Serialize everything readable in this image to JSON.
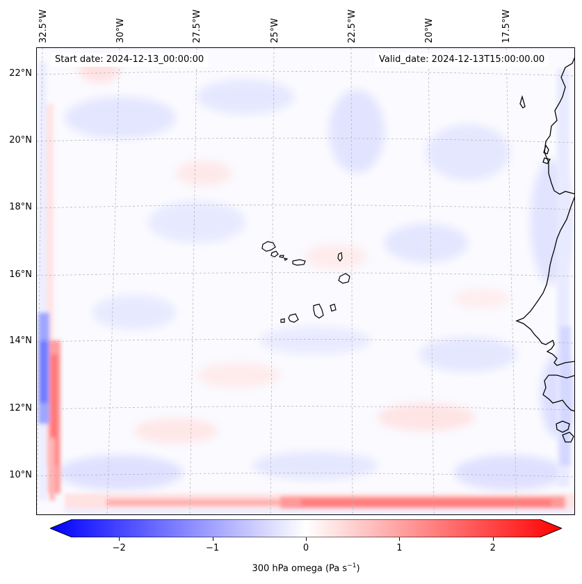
{
  "map": {
    "start_date": "Start date: 2024-12-13_00:00:00",
    "valid_date": "Valid_date: 2024-12-13T15:00:00.00",
    "longitudes": [
      "32.5°W",
      "30°W",
      "27.5°W",
      "25°W",
      "22.5°W",
      "20°W",
      "17.5°W"
    ],
    "latitudes": [
      "22°N",
      "20°N",
      "18°N",
      "16°N",
      "14°N",
      "12°N",
      "10°N"
    ],
    "colors": {
      "negative": "#0000ff",
      "positive": "#ff0000",
      "neutral": "#ffffff",
      "coastline": "#000000",
      "gridline": "#b0b0b0"
    }
  },
  "colorbar": {
    "label": "300 hPa omega (Pa s",
    "label_sup": "−1",
    "label_close": ")",
    "range": [
      -2.7,
      2.7
    ],
    "ticks": [
      {
        "value": -2,
        "text": "−2"
      },
      {
        "value": -1,
        "text": "−1"
      },
      {
        "value": 0,
        "text": "0"
      },
      {
        "value": 1,
        "text": "1"
      },
      {
        "value": 2,
        "text": "2"
      }
    ]
  }
}
